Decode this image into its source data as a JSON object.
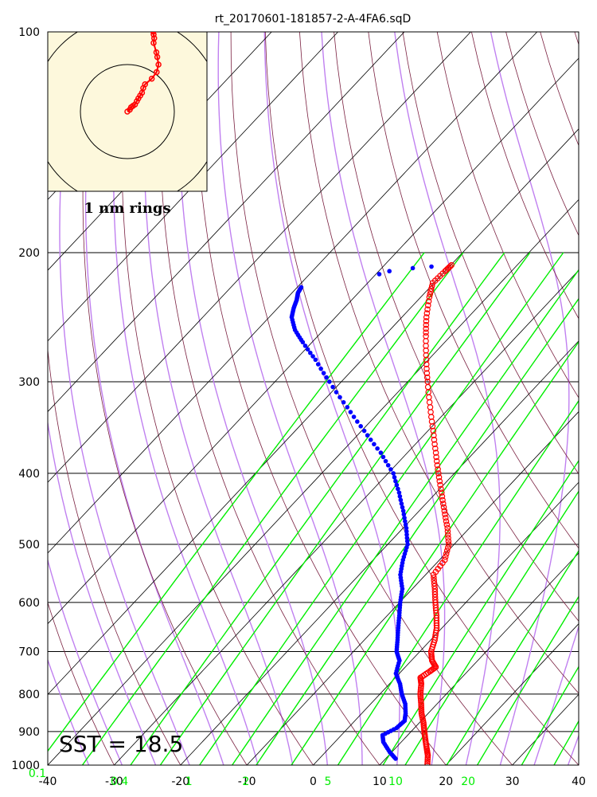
{
  "colors": {
    "isotherm": "#000000",
    "dry_adiabat": "#7a2040",
    "moist_adiabat": "#c080f0",
    "mixing_ratio": "#00ee00",
    "temperature": "#ff0000",
    "dewpoint": "#0000ff",
    "hodograph_bg": "#fdf8dc"
  },
  "chart_data": {
    "type": "scatter",
    "subtype": "skew-t log-p sounding",
    "title": "rt_20170601-181857-2-A-4FA6.sqD",
    "y_scale": "log",
    "y_inverted": true,
    "xlim": [
      -40,
      40
    ],
    "ylim": [
      1050,
      100
    ],
    "x_ticks": [
      -40,
      -30,
      -20,
      -10,
      0,
      10,
      20,
      30,
      40
    ],
    "y_ticks": [
      100,
      200,
      300,
      400,
      500,
      600,
      700,
      800,
      900,
      1000
    ],
    "mixing_ratio_labels": [
      "0.1",
      "0.4",
      "1",
      "2",
      "5",
      "10",
      "20"
    ],
    "mixing_ratio_values": [
      0.1,
      0.4,
      1,
      2,
      5,
      10,
      20
    ],
    "grid": true,
    "series": [
      {
        "role": "temperature",
        "color": "#ff0000",
        "marker": "open-circle",
        "points": [
          [
            1000,
            17.2
          ],
          [
            970,
            15.9
          ],
          [
            950,
            14.8
          ],
          [
            925,
            13.4
          ],
          [
            900,
            12.0
          ],
          [
            875,
            10.6
          ],
          [
            850,
            9.0
          ],
          [
            825,
            7.6
          ],
          [
            800,
            6.1
          ],
          [
            775,
            4.8
          ],
          [
            760,
            3.8
          ],
          [
            745,
            4.3
          ],
          [
            735,
            4.6
          ],
          [
            720,
            3.1
          ],
          [
            700,
            1.7
          ],
          [
            675,
            0.6
          ],
          [
            650,
            -0.8
          ],
          [
            625,
            -2.6
          ],
          [
            600,
            -4.6
          ],
          [
            575,
            -6.6
          ],
          [
            550,
            -8.8
          ],
          [
            525,
            -9.2
          ],
          [
            500,
            -10.8
          ],
          [
            475,
            -13.3
          ],
          [
            450,
            -16.2
          ],
          [
            425,
            -19.2
          ],
          [
            400,
            -22.4
          ],
          [
            375,
            -25.7
          ],
          [
            350,
            -29.2
          ],
          [
            325,
            -33.0
          ],
          [
            300,
            -37.0
          ],
          [
            280,
            -40.3
          ],
          [
            260,
            -43.7
          ],
          [
            245,
            -46.3
          ],
          [
            230,
            -48.7
          ],
          [
            220,
            -50.2
          ],
          [
            212,
            -50.0
          ],
          [
            208,
            -49.9
          ]
        ]
      },
      {
        "role": "dewpoint",
        "color": "#0000ff",
        "marker": "filled-dot",
        "points": [
          [
            980,
            11.5
          ],
          [
            960,
            9.7
          ],
          [
            930,
            7.3
          ],
          [
            910,
            6.2
          ],
          [
            890,
            7.3
          ],
          [
            870,
            7.5
          ],
          [
            850,
            6.6
          ],
          [
            825,
            5.2
          ],
          [
            800,
            3.3
          ],
          [
            775,
            1.6
          ],
          [
            750,
            -0.5
          ],
          [
            720,
            -1.8
          ],
          [
            700,
            -3.5
          ],
          [
            675,
            -5.0
          ],
          [
            650,
            -6.6
          ],
          [
            625,
            -8.2
          ],
          [
            600,
            -9.9
          ],
          [
            575,
            -11.5
          ],
          [
            550,
            -13.8
          ],
          [
            525,
            -15.5
          ],
          [
            500,
            -17.0
          ],
          [
            475,
            -19.5
          ],
          [
            450,
            -22.4
          ],
          [
            425,
            -25.6
          ],
          [
            400,
            -29.2
          ],
          [
            375,
            -34.0
          ],
          [
            350,
            -39.6
          ],
          [
            325,
            -45.5
          ],
          [
            300,
            -51.8
          ],
          [
            280,
            -57.0
          ],
          [
            265,
            -61.4
          ],
          [
            255,
            -64.3
          ],
          [
            245,
            -66.6
          ],
          [
            238,
            -67.6
          ],
          [
            232,
            -68.3
          ],
          [
            227,
            -69.1
          ],
          [
            223,
            -69.4
          ],
          [
            214,
            -59.5
          ],
          [
            212,
            -58.4
          ],
          [
            210,
            -55.3
          ],
          [
            209,
            -52.7
          ]
        ]
      }
    ],
    "annotations": [
      "SST = 18.5"
    ],
    "inset": {
      "type": "hodograph",
      "label": "1 nm rings",
      "ring_spacing_nm": 1,
      "points": [
        [
          0.0,
          0.0
        ],
        [
          0.08,
          0.04
        ],
        [
          0.12,
          0.09
        ],
        [
          0.18,
          0.12
        ],
        [
          0.25,
          0.15
        ],
        [
          0.31,
          0.22
        ],
        [
          0.36,
          0.28
        ],
        [
          0.42,
          0.34
        ],
        [
          0.48,
          0.4
        ],
        [
          0.52,
          0.5
        ],
        [
          0.58,
          0.58
        ],
        [
          0.8,
          0.7
        ],
        [
          0.96,
          0.84
        ],
        [
          1.02,
          1.0
        ],
        [
          0.98,
          1.16
        ],
        [
          0.95,
          1.26
        ],
        [
          0.86,
          1.46
        ],
        [
          0.88,
          1.56
        ],
        [
          0.86,
          1.64
        ],
        [
          0.85,
          1.7
        ]
      ]
    },
    "sst_label": "SST = 18.5",
    "rings_label": "1 nm rings"
  }
}
